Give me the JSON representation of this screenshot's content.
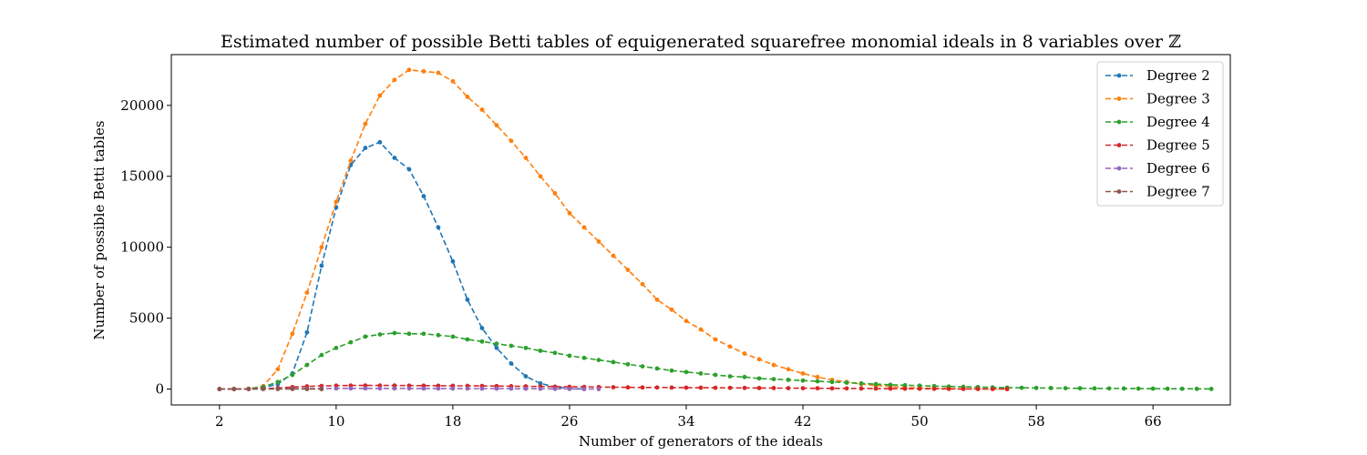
{
  "chart_data": {
    "type": "line",
    "title": "Estimated number of possible Betti tables of equigenerated squarefree monomial ideals in 8 variables over ℤ",
    "xlabel": "Number of generators of the ideals",
    "ylabel": "Number of possible Betti tables",
    "xlim": [
      -1.3,
      71.3
    ],
    "ylim": [
      -1120,
      23580
    ],
    "xticks": [
      2,
      10,
      18,
      26,
      34,
      42,
      50,
      58,
      66
    ],
    "yticks": [
      0,
      5000,
      10000,
      15000,
      20000
    ],
    "grid": false,
    "legend_position": "top-right",
    "series": [
      {
        "name": "Degree 2",
        "color": "#1f77b4",
        "x": [
          2,
          3,
          4,
          5,
          6,
          7,
          8,
          9,
          10,
          11,
          12,
          13,
          14,
          15,
          16,
          17,
          18,
          19,
          20,
          21,
          22,
          23,
          24,
          25,
          26,
          27
        ],
        "y": [
          0,
          5,
          20,
          100,
          350,
          1100,
          4000,
          8700,
          12800,
          15800,
          17000,
          17400,
          16300,
          15500,
          13600,
          11400,
          9000,
          6300,
          4300,
          2900,
          1800,
          900,
          400,
          150,
          40,
          5
        ]
      },
      {
        "name": "Degree 3",
        "color": "#ff7f0e",
        "x": [
          2,
          3,
          4,
          5,
          6,
          7,
          8,
          9,
          10,
          11,
          12,
          13,
          14,
          15,
          16,
          17,
          18,
          19,
          20,
          21,
          22,
          23,
          24,
          25,
          26,
          27,
          28,
          29,
          30,
          31,
          32,
          33,
          34,
          35,
          36,
          37,
          38,
          39,
          40,
          41,
          42,
          43,
          44,
          45,
          46,
          47,
          48,
          49,
          50,
          51,
          52,
          53,
          54,
          55,
          56
        ],
        "y": [
          0,
          0,
          20,
          200,
          1400,
          3900,
          6800,
          10000,
          13200,
          16100,
          18700,
          20700,
          21800,
          22500,
          22400,
          22300,
          21700,
          20600,
          19700,
          18600,
          17500,
          16300,
          15000,
          13800,
          12400,
          11400,
          10400,
          9400,
          8400,
          7400,
          6300,
          5600,
          4800,
          4200,
          3500,
          3000,
          2500,
          2100,
          1700,
          1400,
          1100,
          850,
          650,
          500,
          350,
          250,
          180,
          120,
          80,
          50,
          30,
          20,
          10,
          5,
          0
        ]
      },
      {
        "name": "Degree 4",
        "color": "#2ca02c",
        "x": [
          2,
          3,
          4,
          5,
          6,
          7,
          8,
          9,
          10,
          11,
          12,
          13,
          14,
          15,
          16,
          17,
          18,
          19,
          20,
          21,
          22,
          23,
          24,
          25,
          26,
          27,
          28,
          29,
          30,
          31,
          32,
          33,
          34,
          35,
          36,
          37,
          38,
          39,
          40,
          41,
          42,
          43,
          44,
          45,
          46,
          47,
          48,
          49,
          50,
          51,
          52,
          53,
          54,
          55,
          56,
          57,
          58,
          59,
          60,
          61,
          62,
          63,
          64,
          65,
          66,
          67,
          68,
          69,
          70
        ],
        "y": [
          0,
          0,
          20,
          150,
          500,
          1000,
          1700,
          2400,
          2900,
          3300,
          3700,
          3850,
          3950,
          3900,
          3900,
          3800,
          3700,
          3500,
          3350,
          3200,
          3050,
          2900,
          2700,
          2550,
          2350,
          2200,
          2050,
          1900,
          1750,
          1600,
          1450,
          1300,
          1200,
          1100,
          1000,
          900,
          850,
          750,
          700,
          650,
          600,
          550,
          500,
          450,
          400,
          350,
          300,
          270,
          240,
          210,
          180,
          160,
          140,
          120,
          100,
          90,
          80,
          70,
          60,
          55,
          50,
          45,
          40,
          35,
          30,
          25,
          20,
          15,
          10
        ]
      },
      {
        "name": "Degree 5",
        "color": "#d62728",
        "x": [
          2,
          3,
          4,
          5,
          6,
          7,
          8,
          9,
          10,
          11,
          12,
          13,
          14,
          15,
          16,
          17,
          18,
          19,
          20,
          21,
          22,
          23,
          24,
          25,
          26,
          27,
          28,
          29,
          30,
          31,
          32,
          33,
          34,
          35,
          36,
          37,
          38,
          39,
          40,
          41,
          42,
          43,
          44,
          45,
          46,
          47,
          48,
          49,
          50,
          51,
          52,
          53,
          54,
          55,
          56
        ],
        "y": [
          0,
          0,
          5,
          30,
          80,
          140,
          190,
          220,
          240,
          250,
          250,
          250,
          250,
          245,
          240,
          235,
          230,
          225,
          220,
          210,
          200,
          190,
          180,
          170,
          160,
          150,
          140,
          130,
          120,
          115,
          110,
          105,
          100,
          95,
          90,
          85,
          80,
          75,
          70,
          65,
          60,
          55,
          50,
          45,
          40,
          35,
          30,
          25,
          20,
          15,
          12,
          10,
          8,
          5,
          0
        ]
      },
      {
        "name": "Degree 6",
        "color": "#9467bd",
        "x": [
          2,
          3,
          4,
          5,
          6,
          7,
          8,
          9,
          10,
          11,
          12,
          13,
          14,
          15,
          16,
          17,
          18,
          19,
          20,
          21,
          22,
          23,
          24,
          25,
          26,
          27,
          28
        ],
        "y": [
          0,
          0,
          2,
          10,
          20,
          30,
          38,
          42,
          45,
          46,
          46,
          46,
          45,
          44,
          43,
          42,
          40,
          38,
          35,
          32,
          28,
          24,
          20,
          15,
          10,
          5,
          0
        ]
      },
      {
        "name": "Degree 7",
        "color": "#8c564b",
        "x": [
          2,
          3,
          4,
          5,
          6,
          7,
          8,
          9
        ],
        "y": [
          0,
          0,
          2,
          4,
          6,
          5,
          3,
          0
        ]
      }
    ]
  }
}
